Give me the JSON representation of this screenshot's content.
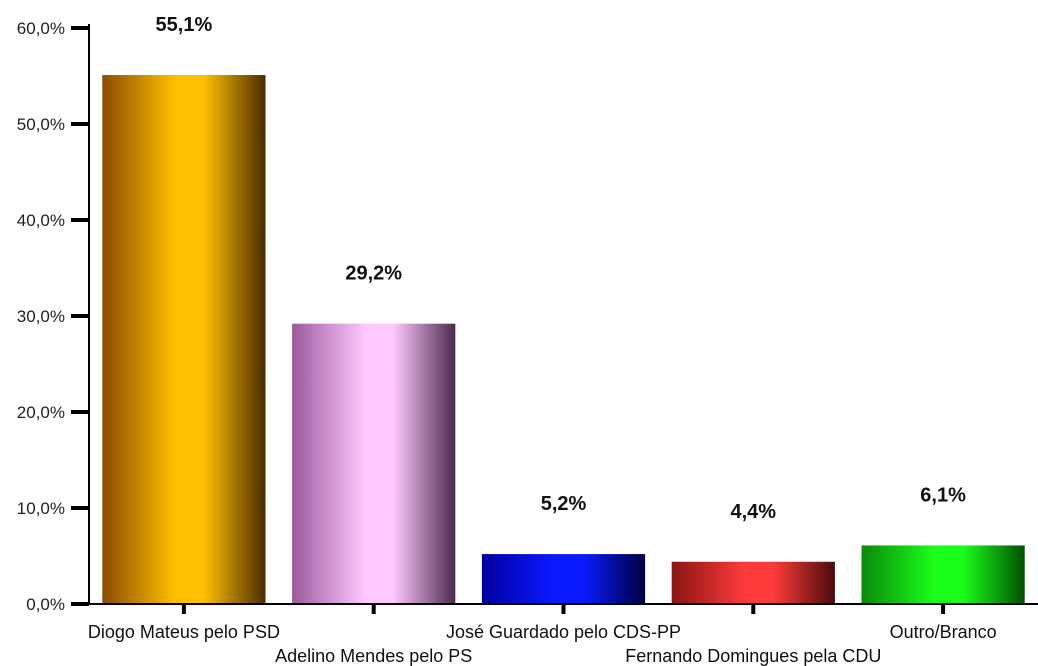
{
  "chart_data": {
    "type": "bar",
    "title": "",
    "xlabel": "",
    "ylabel": "",
    "ylim": [
      0,
      60
    ],
    "grid": false,
    "legend": "none",
    "y_ticks": [
      "0,0%",
      "10,0%",
      "20,0%",
      "30,0%",
      "40,0%",
      "50,0%",
      "60,0%"
    ],
    "categories": [
      "Diogo Mateus pelo PSD",
      "Adelino Mendes pelo PS",
      "José Guardado pelo CDS-PP",
      "Fernando Domingues pela CDU",
      "Outro/Branco"
    ],
    "values": [
      55.1,
      29.2,
      5.2,
      4.4,
      6.1
    ],
    "value_labels": [
      "55,1%",
      "29,2%",
      "5,2%",
      "4,4%",
      "6,1%"
    ],
    "colors": [
      {
        "edge": "#8a4d00",
        "highlight": "#ffc000",
        "shade": "#4a2c00"
      },
      {
        "edge": "#9b5a9c",
        "highlight": "#ffc8ff",
        "shade": "#4a2a4c"
      },
      {
        "edge": "#0000a0",
        "highlight": "#0a1aff",
        "shade": "#000040"
      },
      {
        "edge": "#8a1414",
        "highlight": "#ff3a3a",
        "shade": "#4a0c0c"
      },
      {
        "edge": "#0a8a0a",
        "highlight": "#1aff1a",
        "shade": "#005000"
      }
    ]
  }
}
